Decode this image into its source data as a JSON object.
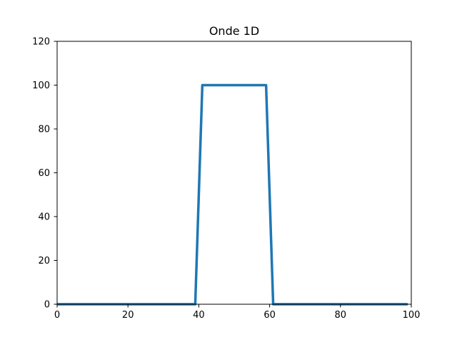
{
  "chart_data": {
    "type": "line",
    "title": "Onde 1D",
    "xlabel": "",
    "ylabel": "",
    "xlim": [
      0,
      100
    ],
    "ylim": [
      0,
      120
    ],
    "xticks": [
      0,
      20,
      40,
      60,
      80,
      100
    ],
    "yticks": [
      0,
      20,
      40,
      60,
      80,
      100,
      120
    ],
    "grid": false,
    "series": [
      {
        "color": "#1f77b4",
        "x": [
          0,
          39,
          41,
          59,
          61,
          99
        ],
        "y": [
          0,
          0,
          100,
          100,
          0,
          0
        ]
      }
    ]
  }
}
